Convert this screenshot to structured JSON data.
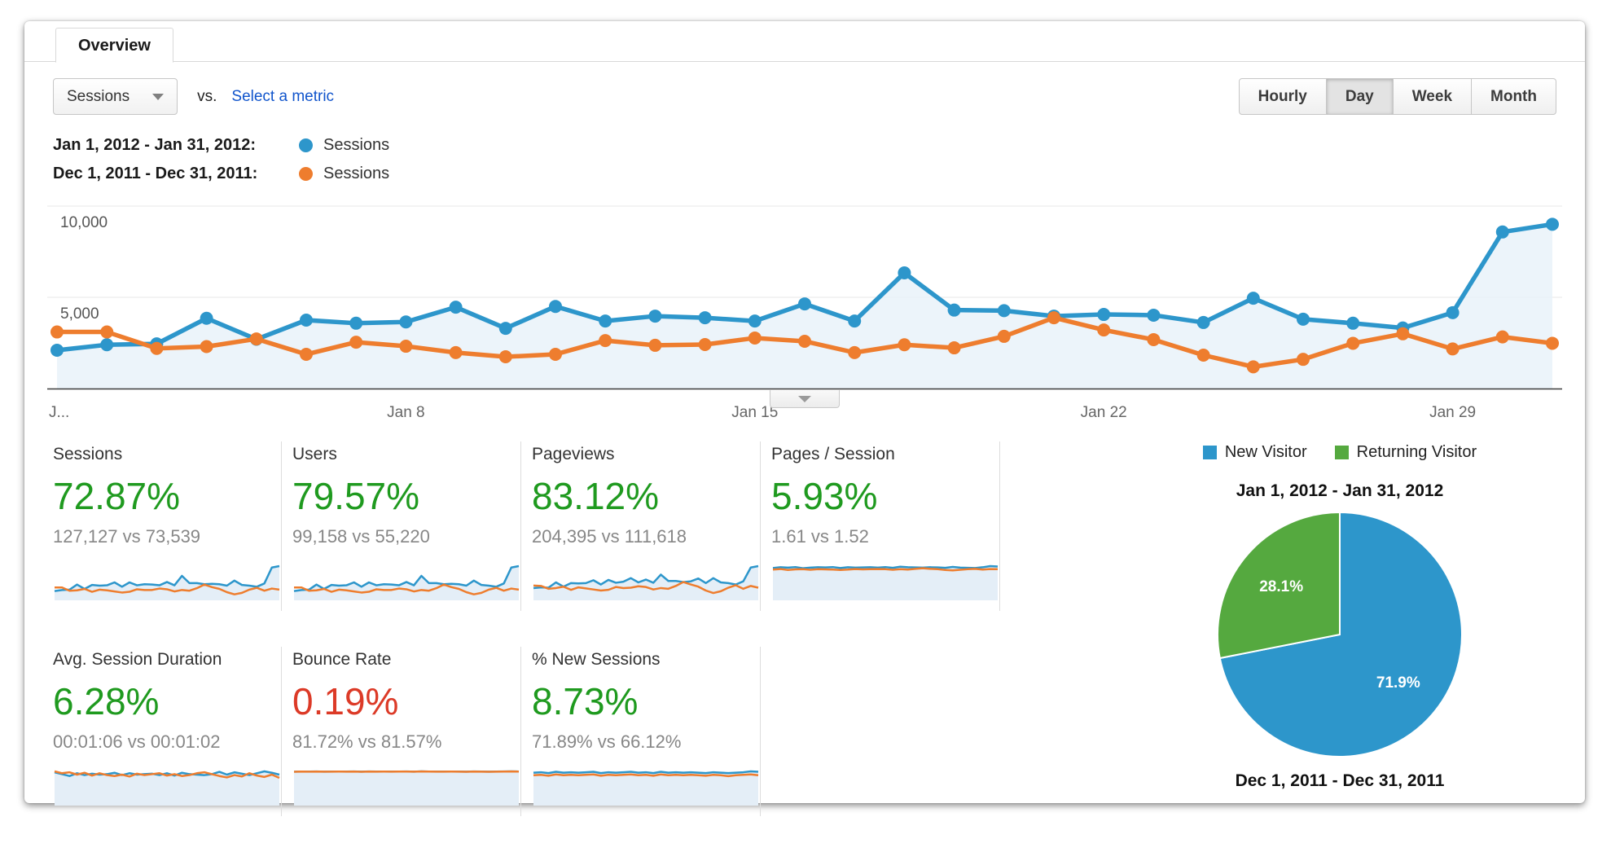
{
  "tab": {
    "label": "Overview"
  },
  "toolbar": {
    "metric_selector": "Sessions",
    "vs_label": "vs.",
    "select_metric": "Select a metric",
    "granularity": [
      "Hourly",
      "Day",
      "Week",
      "Month"
    ],
    "granularity_active": "Day"
  },
  "legend": [
    {
      "range": "Jan 1, 2012 - Jan 31, 2012:",
      "series": "Sessions",
      "color": "#2d96cb"
    },
    {
      "range": "Dec 1, 2011 - Dec 31, 2011:",
      "series": "Sessions",
      "color": "#ee7d2e"
    }
  ],
  "chart_data": [
    {
      "type": "line",
      "title": "Sessions by day, Jan 1 2012 - Jan 31 2012 vs Dec 1 2011 - Dec 31 2011",
      "ylim": [
        0,
        10000
      ],
      "yticks": [
        5000,
        10000
      ],
      "ytick_labels": [
        "5,000",
        "10,000"
      ],
      "xtick_labels": [
        "J...",
        "Jan 8",
        "Jan 15",
        "Jan 22",
        "Jan 29"
      ],
      "xtick_positions": [
        0,
        7,
        14,
        21,
        28
      ],
      "grid": "horizontal",
      "series": [
        {
          "name": "Sessions (Jan 1, 2012 - Jan 31, 2012)",
          "color": "#2d96cb",
          "fill": "#e9f2f9",
          "values": [
            2100,
            2400,
            2450,
            3850,
            2700,
            3750,
            3580,
            3650,
            4460,
            3300,
            4500,
            3700,
            3970,
            3880,
            3700,
            4640,
            3700,
            6340,
            4300,
            4270,
            3970,
            4060,
            4020,
            3620,
            4950,
            3800,
            3580,
            3320,
            4160,
            8580,
            9000
          ]
        },
        {
          "name": "Sessions (Dec 1, 2011 - Dec 31, 2011)",
          "color": "#ee7d2e",
          "fill": null,
          "values": [
            3100,
            3100,
            2200,
            2300,
            2720,
            1875,
            2540,
            2320,
            1970,
            1740,
            1875,
            2630,
            2370,
            2410,
            2770,
            2590,
            1970,
            2400,
            2230,
            2860,
            3880,
            3210,
            2680,
            1830,
            1190,
            1600,
            2480,
            3000,
            2170,
            2830,
            2480
          ]
        }
      ]
    },
    {
      "type": "pie",
      "title": "Jan 1, 2012 - Jan 31, 2012",
      "subtitle": "Dec 1, 2011 - Dec 31, 2011",
      "legend": [
        "New Visitor",
        "Returning Visitor"
      ],
      "slices": [
        {
          "label": "New Visitor",
          "value": 71.9,
          "color": "#2d96cb"
        },
        {
          "label": "Returning Visitor",
          "value": 28.1,
          "color": "#55a93f"
        }
      ]
    }
  ],
  "scorecards": [
    {
      "title": "Sessions",
      "delta": "72.87%",
      "color": "#1f9a1f",
      "detail": "127,127 vs 73,539",
      "spark": {
        "blue": [
          21,
          24,
          25,
          39,
          27,
          38,
          36,
          37,
          45,
          33,
          45,
          37,
          40,
          39,
          37,
          46,
          37,
          63,
          43,
          43,
          40,
          41,
          40,
          36,
          50,
          38,
          36,
          33,
          42,
          86,
          90
        ],
        "orange": [
          31,
          31,
          22,
          23,
          27,
          19,
          25,
          23,
          20,
          17,
          19,
          26,
          24,
          24,
          28,
          26,
          20,
          24,
          22,
          29,
          39,
          32,
          27,
          18,
          12,
          16,
          25,
          30,
          22,
          28,
          25
        ]
      }
    },
    {
      "title": "Users",
      "delta": "79.57%",
      "color": "#1f9a1f",
      "detail": "99,158 vs 55,220",
      "spark": {
        "blue": [
          21,
          24,
          25,
          39,
          27,
          38,
          36,
          37,
          45,
          33,
          45,
          37,
          40,
          39,
          37,
          46,
          37,
          63,
          43,
          43,
          40,
          41,
          40,
          36,
          50,
          38,
          36,
          33,
          42,
          86,
          90
        ],
        "orange": [
          31,
          31,
          22,
          23,
          27,
          19,
          25,
          23,
          20,
          17,
          19,
          26,
          24,
          24,
          28,
          26,
          20,
          24,
          22,
          29,
          39,
          32,
          27,
          18,
          12,
          16,
          25,
          30,
          22,
          28,
          25
        ]
      }
    },
    {
      "title": "Pageviews",
      "delta": "83.12%",
      "color": "#1f9a1f",
      "detail": "204,395 vs 111,618",
      "spark": {
        "blue": [
          30,
          32,
          31,
          46,
          34,
          44,
          43,
          44,
          52,
          40,
          53,
          45,
          48,
          58,
          46,
          54,
          45,
          68,
          50,
          50,
          47,
          49,
          57,
          44,
          58,
          46,
          44,
          40,
          49,
          88,
          92
        ],
        "orange": [
          37,
          36,
          28,
          30,
          34,
          25,
          32,
          29,
          26,
          23,
          25,
          33,
          30,
          31,
          35,
          33,
          26,
          30,
          28,
          36,
          47,
          40,
          34,
          23,
          16,
          21,
          31,
          38,
          28,
          36,
          31
        ]
      }
    },
    {
      "title": "Pages / Session",
      "delta": "5.93%",
      "color": "#1f9a1f",
      "detail": "1.61 vs 1.52",
      "spark": {
        "blue": [
          1.58,
          1.62,
          1.6,
          1.63,
          1.57,
          1.6,
          1.62,
          1.61,
          1.63,
          1.58,
          1.62,
          1.6,
          1.61,
          1.62,
          1.6,
          1.63,
          1.59,
          1.65,
          1.62,
          1.61,
          1.6,
          1.62,
          1.61,
          1.59,
          1.64,
          1.6,
          1.59,
          1.58,
          1.62,
          1.68,
          1.66
        ],
        "orange": [
          1.5,
          1.53,
          1.48,
          1.51,
          1.52,
          1.49,
          1.52,
          1.51,
          1.5,
          1.48,
          1.5,
          1.53,
          1.51,
          1.52,
          1.53,
          1.52,
          1.49,
          1.52,
          1.5,
          1.54,
          1.57,
          1.54,
          1.52,
          1.48,
          1.46,
          1.49,
          1.52,
          1.54,
          1.5,
          1.53,
          1.52
        ]
      }
    },
    {
      "title": "Avg. Session Duration",
      "delta": "6.28%",
      "color": "#1f9a1f",
      "detail": "00:01:06 vs 00:01:02",
      "spark": {
        "blue": [
          68,
          64,
          60,
          66,
          62,
          65,
          63,
          64,
          67,
          62,
          66,
          63,
          64,
          65,
          62,
          66,
          61,
          67,
          64,
          63,
          62,
          64,
          69,
          63,
          68,
          65,
          62,
          66,
          70,
          67,
          63
        ],
        "orange": [
          70,
          66,
          68,
          63,
          67,
          61,
          66,
          62,
          60,
          63,
          59,
          65,
          62,
          64,
          66,
          61,
          64,
          60,
          62,
          66,
          68,
          64,
          60,
          57,
          62,
          59,
          66,
          61,
          58,
          63,
          56
        ]
      }
    },
    {
      "title": "Bounce Rate",
      "delta": "0.19%",
      "color": "#dc3a27",
      "detail": "81.72% vs 81.57%",
      "spark": {
        "blue": [
          81.5,
          81.8,
          81.6,
          81.9,
          81.4,
          81.7,
          81.8,
          81.6,
          82,
          81.5,
          81.9,
          81.7,
          81.8,
          81.6,
          81.7,
          82,
          81.5,
          82.1,
          81.8,
          81.7,
          81.6,
          81.8,
          81.7,
          81.5,
          81.9,
          81.6,
          81.5,
          81.7,
          81.9,
          82.2,
          81.8
        ],
        "orange": [
          81.3,
          81.6,
          81.4,
          81.7,
          81.5,
          81.4,
          81.6,
          81.5,
          81.8,
          81.3,
          81.7,
          81.5,
          81.6,
          81.4,
          81.6,
          81.8,
          81.4,
          81.9,
          81.6,
          81.5,
          81.4,
          81.6,
          81.5,
          81.3,
          81.7,
          81.4,
          81.3,
          81.5,
          81.7,
          82,
          81.6
        ]
      }
    },
    {
      "title": "% New Sessions",
      "delta": "8.73%",
      "color": "#1f9a1f",
      "detail": "71.89% vs 66.12%",
      "spark": {
        "blue": [
          72,
          73,
          71,
          74,
          72,
          73,
          72,
          73,
          74,
          71,
          73,
          72,
          73,
          74,
          72,
          73,
          71,
          74,
          72,
          73,
          72,
          73,
          72,
          71,
          73,
          72,
          71,
          72,
          73,
          75,
          74
        ],
        "orange": [
          66,
          67,
          65,
          68,
          66,
          67,
          66,
          67,
          68,
          65,
          67,
          66,
          67,
          68,
          66,
          67,
          65,
          68,
          66,
          67,
          66,
          67,
          66,
          65,
          67,
          66,
          64,
          66,
          67,
          68,
          66
        ]
      }
    }
  ]
}
